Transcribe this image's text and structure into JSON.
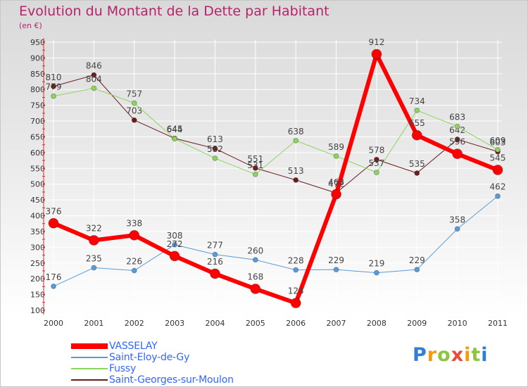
{
  "header": {
    "title": "Evolution du Montant de la Dette par Habitant",
    "subtitle": "(en €)"
  },
  "brand": {
    "name": "Proxiti",
    "letter_colors": [
      "#2f7fd6",
      "#f39c12",
      "#8cc63f",
      "#e74c3c",
      "#f39c12",
      "#8cc63f",
      "#2f7fd6"
    ]
  },
  "chart_data": {
    "type": "line",
    "title": "Evolution du Montant de la Dette par Habitant",
    "subtitle": "(en €)",
    "xlabel": "",
    "ylabel": "",
    "categories": [
      "2000",
      "2001",
      "2002",
      "2003",
      "2004",
      "2005",
      "2006",
      "2007",
      "2008",
      "2009",
      "2010",
      "2011"
    ],
    "ylim": [
      100,
      950
    ],
    "yticks": [
      100,
      150,
      200,
      250,
      300,
      350,
      400,
      450,
      500,
      550,
      600,
      650,
      700,
      750,
      800,
      850,
      900,
      950
    ],
    "grid": true,
    "legend_position": "bottom-left",
    "series": [
      {
        "name": "Saint-Georges-sur-Moulon",
        "color": "#6b1c1c",
        "width": 1,
        "marker_radius": 3.5,
        "values": [
          810,
          846,
          703,
          645,
          613,
          551,
          513,
          472,
          578,
          535,
          642,
          603
        ]
      },
      {
        "name": "Fussy",
        "color": "#8dd35f",
        "width": 1,
        "marker_radius": 3.5,
        "values": [
          779,
          804,
          757,
          644,
          582,
          531,
          638,
          589,
          537,
          734,
          683,
          609
        ]
      },
      {
        "name": "Saint-Eloy-de-Gy",
        "color": "#5b9bd5",
        "width": 1,
        "marker_radius": 3.5,
        "values": [
          176,
          235,
          226,
          308,
          277,
          260,
          228,
          229,
          219,
          229,
          358,
          462
        ]
      },
      {
        "name": "VASSELAY",
        "color": "#ff0000",
        "width": 6,
        "marker_radius": 7,
        "values": [
          376,
          322,
          338,
          272,
          216,
          168,
          123,
          468,
          912,
          655,
          596,
          545
        ]
      }
    ]
  },
  "legend": {
    "items": [
      {
        "name": "VASSELAY",
        "color": "#ff0000",
        "width": 8
      },
      {
        "name": "Saint-Eloy-de-Gy",
        "color": "#5b9bd5",
        "width": 2
      },
      {
        "name": "Fussy",
        "color": "#8dd35f",
        "width": 2
      },
      {
        "name": "Saint-Georges-sur-Moulon",
        "color": "#6b1c1c",
        "width": 2
      }
    ]
  }
}
